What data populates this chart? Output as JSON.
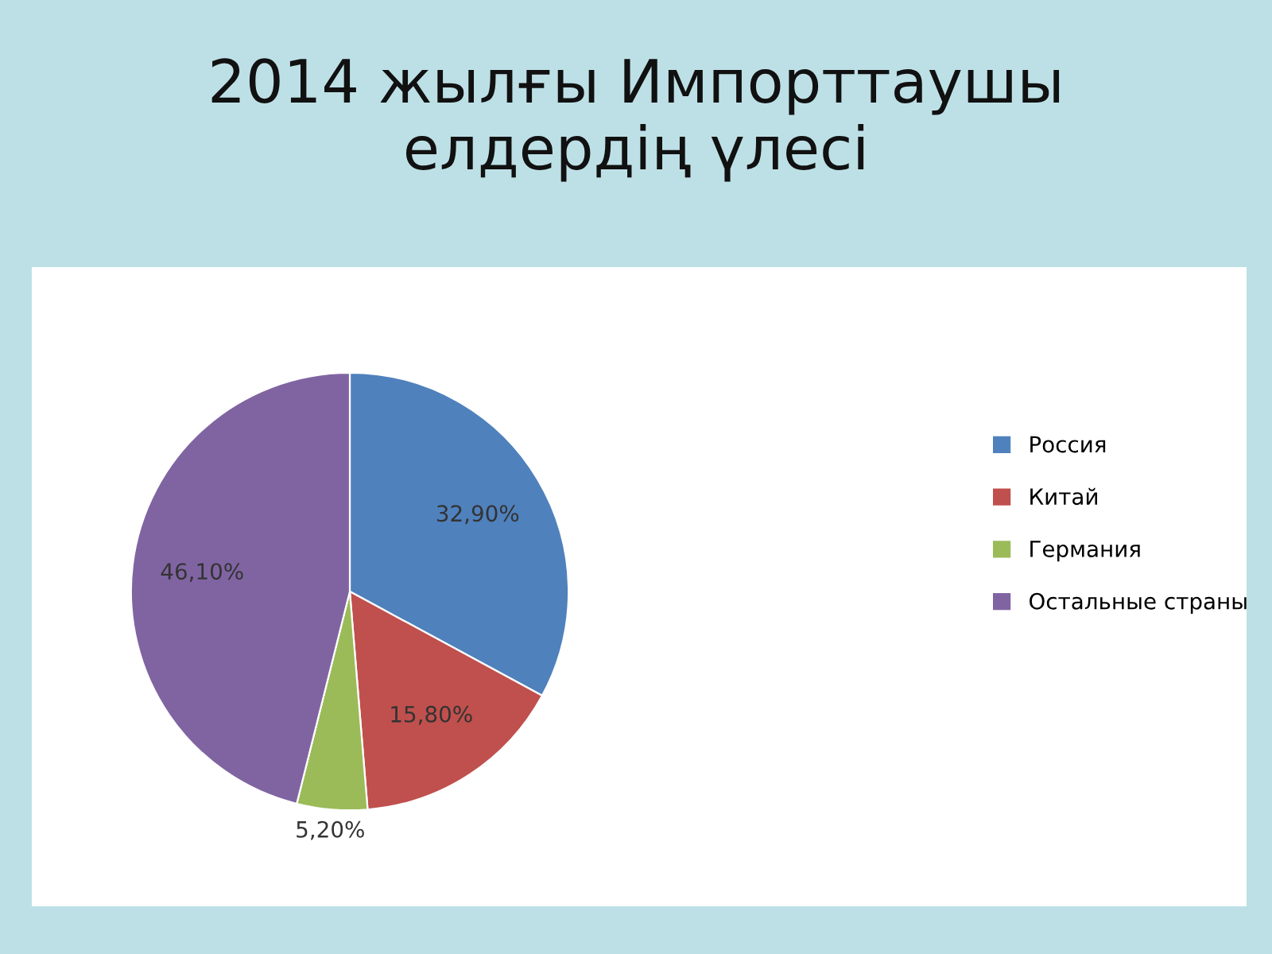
{
  "chart_data": {
    "type": "pie",
    "title": "2014 жылғы Импорттаушы\nелдердің үлесі",
    "categories": [
      "Россия",
      "Китай",
      "Германия",
      "Остальные страны"
    ],
    "values": [
      32.9,
      15.8,
      5.2,
      46.1
    ],
    "colors": [
      "#4f81bd",
      "#c0504d",
      "#9bbb59",
      "#8064a2"
    ],
    "value_labels": [
      "32,90%",
      "15,80%",
      "5,20%",
      "46,10%"
    ],
    "legend": "right"
  }
}
